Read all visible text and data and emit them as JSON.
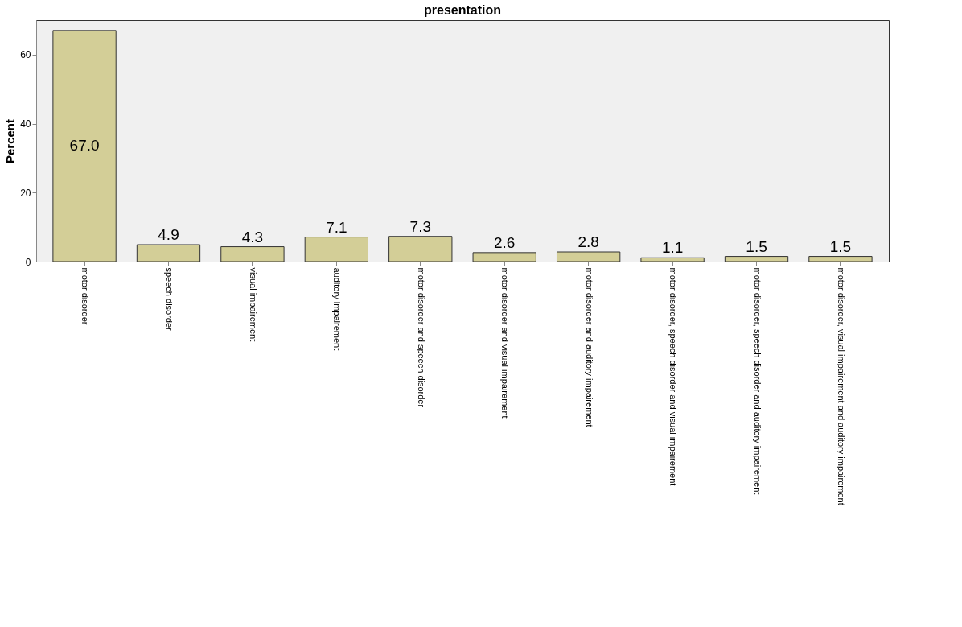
{
  "chart_data": {
    "type": "bar",
    "title": "presentation",
    "ylabel": "Percent",
    "categories": [
      "motor disorder",
      "speech disorder",
      "visual impairement",
      "auditory impairement",
      "motor disorder and speech disorder",
      "motor disorder and visual impairement",
      "motor disorder and auditory impairement",
      "motor disorder, speech disorder and visual impairement",
      "motor disorder, speech disorder and auditory impairement",
      "motor disorder, visual impairement and auditory impairement"
    ],
    "values": [
      67.0,
      4.9,
      4.3,
      7.1,
      7.3,
      2.6,
      2.8,
      1.1,
      1.5,
      1.5
    ],
    "color": "#d3ce97",
    "ylim": [
      0,
      70
    ],
    "yticks": [
      0,
      20,
      40,
      60
    ],
    "grid": false,
    "value_labels": [
      "67.0",
      "4.9",
      "4.3",
      "7.1",
      "7.3",
      "2.6",
      "2.8",
      "1.1",
      "1.5",
      "1.5"
    ]
  }
}
